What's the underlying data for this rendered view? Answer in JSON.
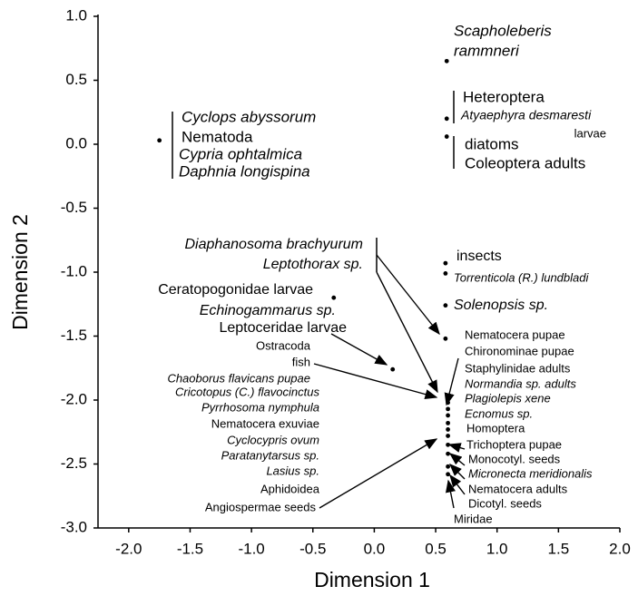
{
  "chart_data": {
    "type": "scatter",
    "x_label": "Dimension 1",
    "y_label": "Dimension 2",
    "xlim": [
      -2.25,
      2.0
    ],
    "ylim": [
      -3.0,
      1.0
    ],
    "xticks": [
      {
        "value": -2.0,
        "label": "-2.0"
      },
      {
        "value": -1.5,
        "label": "-1.5"
      },
      {
        "value": -1.0,
        "label": "-1.0"
      },
      {
        "value": -0.5,
        "label": "-0.5"
      },
      {
        "value": 0.0,
        "label": "0.0"
      },
      {
        "value": 0.5,
        "label": "0.5"
      },
      {
        "value": 1.0,
        "label": "1.0"
      },
      {
        "value": 1.5,
        "label": "1.5"
      },
      {
        "value": 2.0,
        "label": "2.0"
      }
    ],
    "yticks": [
      {
        "value": 1.0,
        "label": "1.0"
      },
      {
        "value": 0.5,
        "label": "0.5"
      },
      {
        "value": 0.0,
        "label": "0.0"
      },
      {
        "value": -0.5,
        "label": "-0.5"
      },
      {
        "value": -1.0,
        "label": "-1.0"
      },
      {
        "value": -1.5,
        "label": "-1.5"
      },
      {
        "value": -2.0,
        "label": "-2.0"
      },
      {
        "value": -2.5,
        "label": "-2.5"
      },
      {
        "value": -3.0,
        "label": "-3.0"
      }
    ],
    "color": "#000000",
    "x": [
      0.59,
      0.59,
      0.59,
      -1.75,
      0.58,
      0.58,
      0.58,
      -0.33,
      0.15,
      0.58,
      0.6,
      0.6,
      0.6,
      0.6,
      0.6,
      0.6,
      0.6,
      0.6,
      0.6,
      0.6,
      0.6
    ],
    "y": [
      0.65,
      0.2,
      0.06,
      0.03,
      -0.93,
      -1.01,
      -1.26,
      -1.2,
      -1.76,
      -1.52,
      -1.97,
      -2.02,
      -2.07,
      -2.12,
      -2.18,
      -2.23,
      -2.28,
      -2.35,
      -2.42,
      -2.52,
      -2.58
    ],
    "annotations": [
      "Scapholeberis",
      "rammneri",
      "Heteroptera",
      "Atyaephyra desmaresti",
      "larvae",
      "diatoms",
      "Coleoptera adults",
      "Cyclops abyssorum",
      "Nematoda",
      "Cypria ophtalmica",
      "Daphnia longispina",
      "Diaphanosoma brachyurum",
      "Leptothorax sp.",
      "insects",
      "Torrenticola (R.) lundbladi",
      "Solenopsis sp.",
      "Ceratopogonidae larvae",
      "Echinogammarus sp.",
      "Leptoceridae larvae",
      "Ostracoda",
      "fish",
      "Chaoborus flavicans pupae",
      "Cricotopus (C.) flavocinctus",
      "Pyrrhosoma nymphula",
      "Nematocera exuviae",
      "Cyclocypris ovum",
      "Paratanytarsus sp.",
      "Lasius sp.",
      "Aphidoidea",
      "Angiospermae seeds",
      "Nematocera pupae",
      "Chironominae pupae",
      "Staphylinidae adults",
      "Normandia sp. adults",
      "Plagiolepis xene",
      "Ecnomus sp.",
      "Homoptera",
      "Trichoptera pupae",
      "Monocotyl. seeds",
      "Micronecta meridionalis",
      "Nematocera adults",
      "Dicotyl. seeds",
      "Miridae"
    ]
  }
}
